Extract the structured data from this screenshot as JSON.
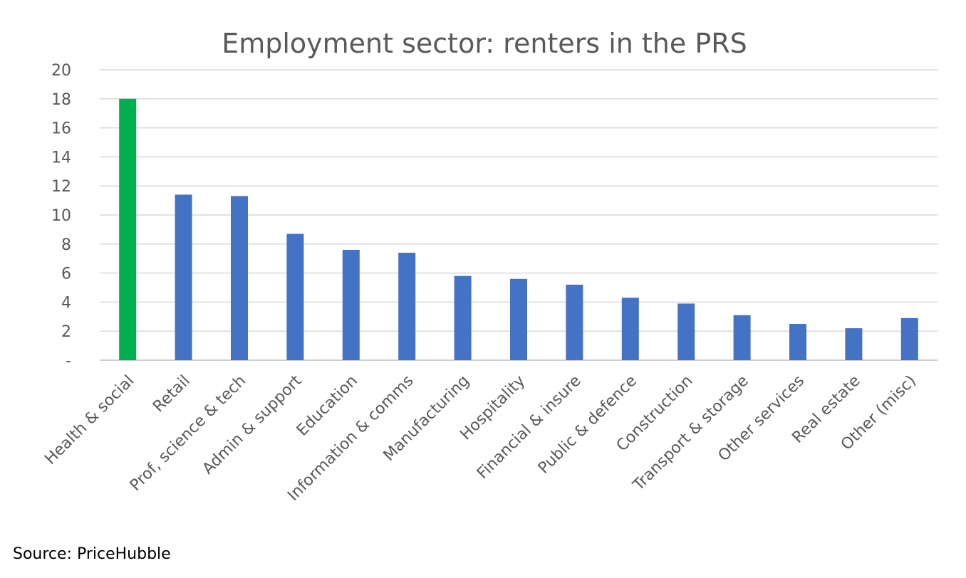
{
  "chart_data": {
    "type": "bar",
    "title": "Employment sector: renters in the PRS",
    "xlabel": "",
    "ylabel": "",
    "categories": [
      "Health & social",
      "Retail",
      "Prof, science & tech",
      "Admin & support",
      "Education",
      "Information & comms",
      "Manufacturing",
      "Hospitality",
      "Financial & insure",
      "Public & defence",
      "Construction",
      "Transport & storage",
      "Other services",
      "Real estate",
      "Other (misc)"
    ],
    "values": [
      18.0,
      11.4,
      11.3,
      8.7,
      7.6,
      7.4,
      5.8,
      5.6,
      5.2,
      4.3,
      3.9,
      3.1,
      2.5,
      2.2,
      2.9
    ],
    "ylim": [
      0,
      20
    ],
    "y_ticks": [
      0,
      2,
      4,
      6,
      8,
      10,
      12,
      14,
      16,
      18,
      20
    ],
    "y_tick_labels": [
      "-",
      "2",
      "4",
      "6",
      "8",
      "10",
      "12",
      "14",
      "16",
      "18",
      "20"
    ],
    "grid": true,
    "legend": "none",
    "colors": {
      "highlight": "#00b050",
      "default": "#4472c4",
      "grid": "#d9d9d9",
      "text": "#595959"
    },
    "highlight_category": "Health & social"
  },
  "footer": {
    "source": "Source: PriceHubble"
  }
}
